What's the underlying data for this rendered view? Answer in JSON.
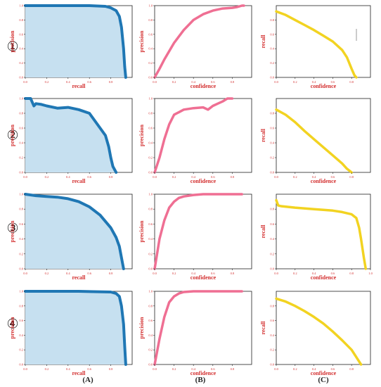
{
  "row_labels": [
    "①",
    "②",
    "③",
    "④"
  ],
  "column_labels": [
    "(A)",
    "(B)",
    "(C)"
  ],
  "colors": {
    "pr_line": "#1f77b4",
    "pr_fill": "#c6e0f0",
    "precision_line": "#ef6f93",
    "recall_line": "#f2d321",
    "tick_text": "#d32f2f",
    "axis_label": "#d32f2f"
  },
  "chart_data": [
    {
      "row": 1,
      "col": "A",
      "type": "area",
      "xlabel": "recall",
      "ylabel": "precision",
      "xlim": [
        0,
        1
      ],
      "ylim": [
        0,
        1
      ],
      "xticks": [
        "0.0",
        "0.2",
        "0.4",
        "0.6",
        "0.8"
      ],
      "yticks": [
        "0.0",
        "0.2",
        "0.4",
        "0.6",
        "0.8",
        "1.0"
      ],
      "x": [
        0,
        0.4,
        0.6,
        0.75,
        0.8,
        0.85,
        0.88,
        0.9,
        0.92,
        0.93,
        0.94
      ],
      "y": [
        1.0,
        1.0,
        1.0,
        0.99,
        0.97,
        0.93,
        0.85,
        0.7,
        0.4,
        0.15,
        0.0
      ]
    },
    {
      "row": 1,
      "col": "B",
      "type": "line",
      "xlabel": "confidence",
      "ylabel": "precision",
      "xlim": [
        0,
        1
      ],
      "ylim": [
        0,
        1
      ],
      "xticks": [
        "0.0",
        "0.2",
        "0.4",
        "0.6",
        "0.8"
      ],
      "yticks": [
        "0.0",
        "0.2",
        "0.4",
        "0.6",
        "0.8",
        "1.0"
      ],
      "x": [
        0,
        0.05,
        0.1,
        0.2,
        0.3,
        0.4,
        0.5,
        0.6,
        0.7,
        0.8,
        0.85,
        0.9,
        0.92
      ],
      "y": [
        0.0,
        0.12,
        0.25,
        0.48,
        0.66,
        0.8,
        0.88,
        0.93,
        0.96,
        0.97,
        0.98,
        1.0,
        1.0
      ]
    },
    {
      "row": 1,
      "col": "C",
      "type": "line",
      "xlabel": "confidence",
      "ylabel": "recall",
      "xlim": [
        0,
        1
      ],
      "ylim": [
        0,
        1
      ],
      "xticks": [
        "0.0",
        "0.2",
        "0.4",
        "0.6",
        "0.8"
      ],
      "yticks": [
        "0.0",
        "0.2",
        "0.4",
        "0.6",
        "0.8"
      ],
      "x": [
        0,
        0.1,
        0.2,
        0.3,
        0.4,
        0.5,
        0.6,
        0.7,
        0.75,
        0.8,
        0.83,
        0.85
      ],
      "y": [
        0.92,
        0.87,
        0.8,
        0.73,
        0.66,
        0.58,
        0.5,
        0.38,
        0.28,
        0.12,
        0.03,
        0.0
      ]
    },
    {
      "row": 2,
      "col": "A",
      "type": "area",
      "xlabel": "recall",
      "ylabel": "precision",
      "xlim": [
        0,
        1
      ],
      "ylim": [
        0,
        1
      ],
      "xticks": [
        "0.0",
        "0.2",
        "0.4",
        "0.6",
        "0.8"
      ],
      "yticks": [
        "0.0",
        "0.2",
        "0.4",
        "0.6",
        "0.8",
        "1.0"
      ],
      "x": [
        0,
        0.05,
        0.08,
        0.1,
        0.15,
        0.2,
        0.3,
        0.4,
        0.5,
        0.6,
        0.65,
        0.7,
        0.75,
        0.78,
        0.8,
        0.82,
        0.85
      ],
      "y": [
        1.0,
        1.0,
        0.9,
        0.93,
        0.92,
        0.9,
        0.87,
        0.88,
        0.85,
        0.8,
        0.7,
        0.6,
        0.5,
        0.35,
        0.2,
        0.08,
        0.0
      ]
    },
    {
      "row": 2,
      "col": "B",
      "type": "line",
      "xlabel": "confidence",
      "ylabel": "precision",
      "xlim": [
        0,
        1
      ],
      "ylim": [
        0,
        1
      ],
      "xticks": [
        "0.0",
        "0.2",
        "0.4",
        "0.6",
        "0.8"
      ],
      "yticks": [
        "0.0",
        "0.2",
        "0.4",
        "0.6",
        "0.8",
        "1.0"
      ],
      "x": [
        0,
        0.05,
        0.1,
        0.15,
        0.2,
        0.3,
        0.4,
        0.5,
        0.55,
        0.6,
        0.65,
        0.7,
        0.75,
        0.8
      ],
      "y": [
        0.0,
        0.2,
        0.45,
        0.65,
        0.78,
        0.85,
        0.87,
        0.88,
        0.85,
        0.9,
        0.93,
        0.96,
        1.0,
        1.0
      ]
    },
    {
      "row": 2,
      "col": "C",
      "type": "line",
      "xlabel": "confidence",
      "ylabel": "recall",
      "xlim": [
        0,
        1
      ],
      "ylim": [
        0,
        1
      ],
      "xticks": [
        "0.0",
        "0.2",
        "0.4",
        "0.6",
        "0.8"
      ],
      "yticks": [
        "0.0",
        "0.2",
        "0.4",
        "0.6",
        "0.8"
      ],
      "x": [
        0,
        0.1,
        0.2,
        0.3,
        0.4,
        0.5,
        0.6,
        0.7,
        0.75,
        0.8
      ],
      "y": [
        0.85,
        0.78,
        0.68,
        0.56,
        0.45,
        0.34,
        0.23,
        0.12,
        0.05,
        0.0
      ]
    },
    {
      "row": 3,
      "col": "A",
      "type": "area",
      "xlabel": "recall",
      "ylabel": "precision",
      "xlim": [
        0,
        1
      ],
      "ylim": [
        0,
        1
      ],
      "xticks": [
        "0.0",
        "0.2",
        "0.4",
        "0.6",
        "0.8"
      ],
      "yticks": [
        "0.0",
        "0.2",
        "0.4",
        "0.6",
        "0.8",
        "1.0"
      ],
      "x": [
        0,
        0.1,
        0.2,
        0.3,
        0.4,
        0.5,
        0.6,
        0.7,
        0.8,
        0.85,
        0.88,
        0.9,
        0.92
      ],
      "y": [
        1.0,
        0.98,
        0.97,
        0.96,
        0.94,
        0.9,
        0.83,
        0.72,
        0.55,
        0.42,
        0.3,
        0.15,
        0.0
      ]
    },
    {
      "row": 3,
      "col": "B",
      "type": "line",
      "xlabel": "confidence",
      "ylabel": "precision",
      "xlim": [
        0,
        1
      ],
      "ylim": [
        0,
        1
      ],
      "xticks": [
        "0.0",
        "0.2",
        "0.4",
        "0.6",
        "0.8"
      ],
      "yticks": [
        "0.0",
        "0.2",
        "0.4",
        "0.6",
        "0.8",
        "1.0"
      ],
      "x": [
        0,
        0.05,
        0.1,
        0.15,
        0.2,
        0.25,
        0.3,
        0.4,
        0.5,
        0.6,
        0.7,
        0.8,
        0.9
      ],
      "y": [
        0.0,
        0.4,
        0.65,
        0.82,
        0.9,
        0.95,
        0.97,
        0.99,
        1.0,
        1.0,
        1.0,
        1.0,
        1.0
      ]
    },
    {
      "row": 3,
      "col": "C",
      "type": "line",
      "xlabel": "confidence",
      "ylabel": "recall",
      "xlim": [
        0,
        1
      ],
      "ylim": [
        0,
        1
      ],
      "xticks": [
        "0.0",
        "0.2",
        "0.4",
        "0.6",
        "0.8",
        "1.0"
      ],
      "yticks": [
        "0.0",
        "0.2",
        "0.4",
        "0.6",
        "0.8"
      ],
      "x": [
        0,
        0.02,
        0.05,
        0.2,
        0.4,
        0.6,
        0.7,
        0.8,
        0.85,
        0.88,
        0.9,
        0.93,
        0.95
      ],
      "y": [
        0.92,
        0.85,
        0.84,
        0.82,
        0.8,
        0.78,
        0.76,
        0.73,
        0.68,
        0.55,
        0.4,
        0.15,
        0.0
      ]
    },
    {
      "row": 4,
      "col": "A",
      "type": "area",
      "xlabel": "recall",
      "ylabel": "precision",
      "xlim": [
        0,
        1
      ],
      "ylim": [
        0,
        1
      ],
      "xticks": [
        "0.0",
        "0.2",
        "0.4",
        "0.6",
        "0.8"
      ],
      "yticks": [
        "0.0",
        "0.2",
        "0.4",
        "0.6",
        "0.8",
        "1.0"
      ],
      "x": [
        0,
        0.5,
        0.8,
        0.85,
        0.88,
        0.9,
        0.92,
        0.93,
        0.94
      ],
      "y": [
        1.0,
        1.0,
        0.99,
        0.97,
        0.93,
        0.8,
        0.55,
        0.25,
        0.0
      ]
    },
    {
      "row": 4,
      "col": "B",
      "type": "line",
      "xlabel": "confidence",
      "ylabel": "precision",
      "xlim": [
        0,
        1
      ],
      "ylim": [
        0,
        1
      ],
      "xticks": [
        "0.0",
        "0.2",
        "0.4",
        "0.6",
        "0.8"
      ],
      "yticks": [
        "0.0",
        "0.2",
        "0.4",
        "0.6",
        "0.8",
        "1.0"
      ],
      "x": [
        0,
        0.05,
        0.1,
        0.15,
        0.2,
        0.25,
        0.3,
        0.4,
        0.5,
        0.7,
        0.9
      ],
      "y": [
        0.0,
        0.35,
        0.65,
        0.85,
        0.93,
        0.97,
        0.99,
        1.0,
        1.0,
        1.0,
        1.0
      ]
    },
    {
      "row": 4,
      "col": "C",
      "type": "line",
      "xlabel": "confidence",
      "ylabel": "recall",
      "xlim": [
        0,
        1
      ],
      "ylim": [
        0,
        1
      ],
      "xticks": [
        "0.0",
        "0.2",
        "0.4",
        "0.6",
        "0.8"
      ],
      "yticks": [
        "0.0",
        "0.2",
        "0.4",
        "0.6",
        "0.8"
      ],
      "x": [
        0,
        0.1,
        0.2,
        0.3,
        0.4,
        0.5,
        0.6,
        0.7,
        0.8,
        0.85,
        0.9
      ],
      "y": [
        0.9,
        0.86,
        0.8,
        0.73,
        0.65,
        0.56,
        0.45,
        0.33,
        0.2,
        0.1,
        0.0
      ]
    }
  ]
}
